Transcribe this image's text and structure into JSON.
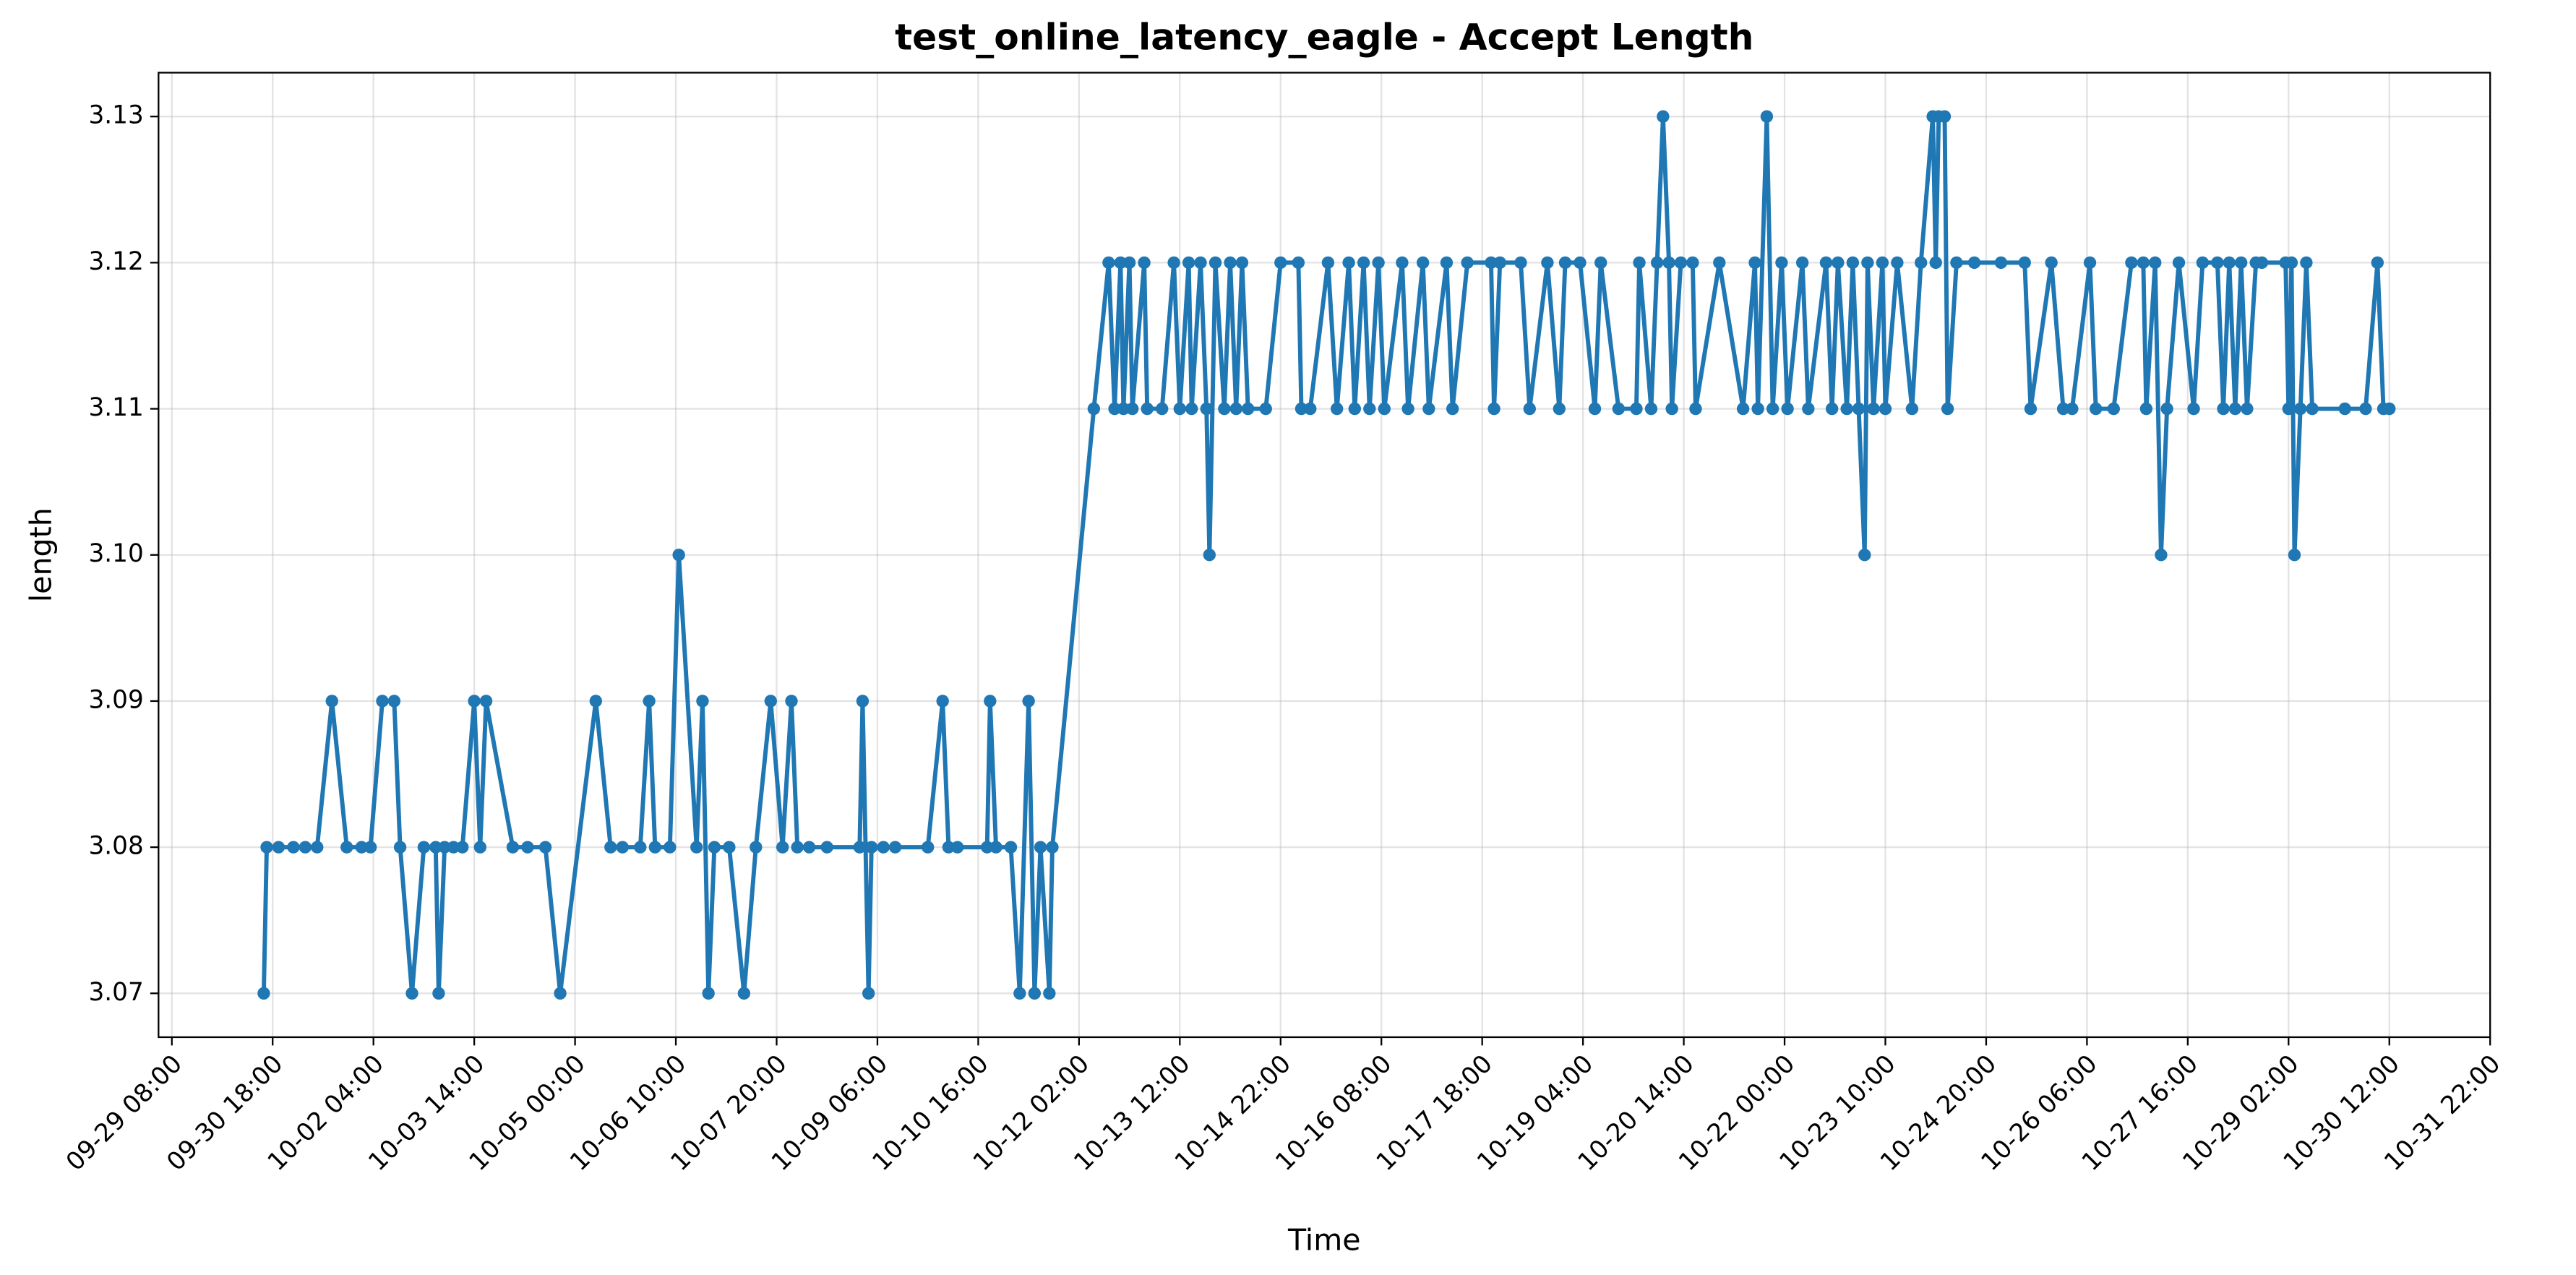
{
  "chart_data": {
    "type": "line",
    "title": "test_online_latency_eagle - Accept Length",
    "xlabel": "Time",
    "ylabel": "length",
    "grid": true,
    "xlim": [
      "09-29 03:30",
      "10-31 22:00"
    ],
    "xticks": [
      "09-29 08:00",
      "09-30 18:00",
      "10-02 04:00",
      "10-03 14:00",
      "10-05 00:00",
      "10-06 10:00",
      "10-07 20:00",
      "10-09 06:00",
      "10-10 16:00",
      "10-12 02:00",
      "10-13 12:00",
      "10-14 22:00",
      "10-16 08:00",
      "10-17 18:00",
      "10-19 04:00",
      "10-20 14:00",
      "10-22 00:00",
      "10-23 10:00",
      "10-24 20:00",
      "10-26 06:00",
      "10-27 16:00",
      "10-29 02:00",
      "10-30 12:00",
      "10-31 22:00"
    ],
    "ylim": [
      3.067,
      3.133
    ],
    "yticks": [
      3.07,
      3.08,
      3.09,
      {
        "value": 3.1,
        "label": "3.10"
      },
      3.11,
      3.12,
      3.13
    ],
    "x": [
      "09-30 15:00",
      "09-30 16:00",
      "09-30 20:00",
      "10-01 01:00",
      "10-01 05:00",
      "10-01 09:00",
      "10-01 14:00",
      "10-01 19:00",
      "10-02 00:00",
      "10-02 03:00",
      "10-02 07:00",
      "10-02 11:00",
      "10-02 13:00",
      "10-02 17:00",
      "10-02 21:00",
      "10-03 01:00",
      "10-03 02:00",
      "10-03 04:00",
      "10-03 07:00",
      "10-03 10:00",
      "10-03 14:00",
      "10-03 16:00",
      "10-03 18:00",
      "10-04 03:00",
      "10-04 08:00",
      "10-04 14:00",
      "10-04 19:00",
      "10-05 07:00",
      "10-05 12:00",
      "10-05 16:00",
      "10-05 22:00",
      "10-06 01:00",
      "10-06 03:00",
      "10-06 08:00",
      "10-06 11:00",
      "10-06 17:00",
      "10-06 19:00",
      "10-06 21:00",
      "10-06 23:00",
      "10-07 04:00",
      "10-07 09:00",
      "10-07 13:00",
      "10-07 18:00",
      "10-07 22:00",
      "10-08 01:00",
      "10-08 03:00",
      "10-08 07:00",
      "10-08 13:00",
      "10-09 00:00",
      "10-09 01:00",
      "10-09 03:00",
      "10-09 04:00",
      "10-09 08:00",
      "10-09 12:00",
      "10-09 23:00",
      "10-10 04:00",
      "10-10 06:00",
      "10-10 09:00",
      "10-10 19:00",
      "10-10 20:00",
      "10-10 22:00",
      "10-11 03:00",
      "10-11 06:00",
      "10-11 09:00",
      "10-11 11:00",
      "10-11 13:00",
      "10-11 16:00",
      "10-11 17:00",
      "10-12 07:00",
      "10-12 12:00",
      "10-12 14:00",
      "10-12 16:00",
      "10-12 17:00",
      "10-12 19:00",
      "10-12 20:00",
      "10-13 00:00",
      "10-13 01:00",
      "10-13 06:00",
      "10-13 10:00",
      "10-13 12:00",
      "10-13 15:00",
      "10-13 16:00",
      "10-13 19:00",
      "10-13 21:00",
      "10-13 22:00",
      "10-14 00:00",
      "10-14 03:00",
      "10-14 05:00",
      "10-14 07:00",
      "10-14 09:00",
      "10-14 11:00",
      "10-14 17:00",
      "10-14 22:00",
      "10-15 04:00",
      "10-15 05:00",
      "10-15 08:00",
      "10-15 14:00",
      "10-15 17:00",
      "10-15 21:00",
      "10-15 23:00",
      "10-16 02:00",
      "10-16 04:00",
      "10-16 07:00",
      "10-16 09:00",
      "10-16 15:00",
      "10-16 17:00",
      "10-16 22:00",
      "10-17 00:00",
      "10-17 06:00",
      "10-17 08:00",
      "10-17 13:00",
      "10-17 21:00",
      "10-17 22:00",
      "10-18 00:00",
      "10-18 07:00",
      "10-18 10:00",
      "10-18 16:00",
      "10-18 20:00",
      "10-18 22:00",
      "10-19 03:00",
      "10-19 08:00",
      "10-19 10:00",
      "10-19 16:00",
      "10-19 22:00",
      "10-19 23:00",
      "10-20 03:00",
      "10-20 05:00",
      "10-20 07:00",
      "10-20 09:00",
      "10-20 10:00",
      "10-20 13:00",
      "10-20 17:00",
      "10-20 18:00",
      "10-21 02:00",
      "10-21 10:00",
      "10-21 14:00",
      "10-21 15:00",
      "10-21 18:00",
      "10-21 20:00",
      "10-21 23:00",
      "10-22 01:00",
      "10-22 06:00",
      "10-22 08:00",
      "10-22 14:00",
      "10-22 16:00",
      "10-22 18:00",
      "10-22 21:00",
      "10-22 23:00",
      "10-23 01:00",
      "10-23 03:00",
      "10-23 04:00",
      "10-23 06:00",
      "10-23 09:00",
      "10-23 10:00",
      "10-23 14:00",
      "10-23 19:00",
      "10-23 22:00",
      "10-24 02:00",
      "10-24 03:00",
      "10-24 04:00",
      "10-24 06:00",
      "10-24 07:00",
      "10-24 10:00",
      "10-24 16:00",
      "10-25 01:00",
      "10-25 09:00",
      "10-25 11:00",
      "10-25 18:00",
      "10-25 22:00",
      "10-26 01:00",
      "10-26 07:00",
      "10-26 09:00",
      "10-26 15:00",
      "10-26 21:00",
      "10-27 01:00",
      "10-27 02:00",
      "10-27 05:00",
      "10-27 07:00",
      "10-27 09:00",
      "10-27 13:00",
      "10-27 18:00",
      "10-27 21:00",
      "10-28 02:00",
      "10-28 04:00",
      "10-28 06:00",
      "10-28 08:00",
      "10-28 10:00",
      "10-28 12:00",
      "10-28 15:00",
      "10-28 17:00",
      "10-29 01:00",
      "10-29 02:00",
      "10-29 03:00",
      "10-29 04:00",
      "10-29 06:00",
      "10-29 08:00",
      "10-29 10:00",
      "10-29 21:00",
      "10-30 04:00",
      "10-30 08:00",
      "10-30 10:00",
      "10-30 12:00"
    ],
    "series": [
      {
        "color": "#1f77b4",
        "values": [
          3.07,
          3.08,
          3.08,
          3.08,
          3.08,
          3.08,
          3.09,
          3.08,
          3.08,
          3.08,
          3.09,
          3.09,
          3.08,
          3.07,
          3.08,
          3.08,
          3.07,
          3.08,
          3.08,
          3.08,
          3.09,
          3.08,
          3.09,
          3.08,
          3.08,
          3.08,
          3.07,
          3.09,
          3.08,
          3.08,
          3.08,
          3.09,
          3.08,
          3.08,
          3.1,
          3.08,
          3.09,
          3.07,
          3.08,
          3.08,
          3.07,
          3.08,
          3.09,
          3.08,
          3.09,
          3.08,
          3.08,
          3.08,
          3.08,
          3.09,
          3.07,
          3.08,
          3.08,
          3.08,
          3.08,
          3.09,
          3.08,
          3.08,
          3.08,
          3.09,
          3.08,
          3.08,
          3.07,
          3.09,
          3.07,
          3.08,
          3.07,
          3.08,
          3.11,
          3.12,
          3.11,
          3.12,
          3.11,
          3.12,
          3.11,
          3.12,
          3.11,
          3.11,
          3.12,
          3.11,
          3.12,
          3.11,
          3.12,
          3.11,
          3.1,
          3.12,
          3.11,
          3.12,
          3.11,
          3.12,
          3.11,
          3.11,
          3.12,
          3.12,
          3.11,
          3.11,
          3.12,
          3.11,
          3.12,
          3.11,
          3.12,
          3.11,
          3.12,
          3.11,
          3.12,
          3.11,
          3.12,
          3.11,
          3.12,
          3.11,
          3.12,
          3.12,
          3.11,
          3.12,
          3.12,
          3.11,
          3.12,
          3.11,
          3.12,
          3.12,
          3.11,
          3.12,
          3.11,
          3.11,
          3.12,
          3.11,
          3.12,
          3.13,
          3.12,
          3.11,
          3.12,
          3.12,
          3.11,
          3.12,
          3.11,
          3.12,
          3.11,
          3.13,
          3.11,
          3.12,
          3.11,
          3.12,
          3.11,
          3.12,
          3.11,
          3.12,
          3.11,
          3.12,
          3.11,
          3.1,
          3.12,
          3.11,
          3.12,
          3.11,
          3.12,
          3.11,
          3.12,
          3.13,
          3.12,
          3.13,
          3.13,
          3.11,
          3.12,
          3.12,
          3.12,
          3.12,
          3.11,
          3.12,
          3.11,
          3.11,
          3.12,
          3.11,
          3.11,
          3.12,
          3.12,
          3.11,
          3.12,
          3.1,
          3.11,
          3.12,
          3.11,
          3.12,
          3.12,
          3.11,
          3.12,
          3.11,
          3.12,
          3.11,
          3.12,
          3.12,
          3.12,
          3.11,
          3.12,
          3.1,
          3.11,
          3.12,
          3.11,
          3.11,
          3.11,
          3.12,
          3.11,
          3.11
        ]
      }
    ]
  }
}
